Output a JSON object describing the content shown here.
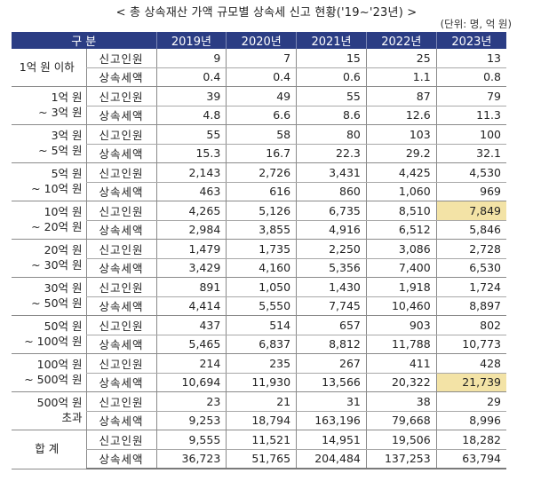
{
  "title": "< 총 상속재산 가액 규모별 상속세 신고 현황('19~'23년) >",
  "unit": "(단위: 명, 억 원)",
  "header": {
    "category": "구 분",
    "years": [
      "2019년",
      "2020년",
      "2021년",
      "2022년",
      "2023년"
    ]
  },
  "row_labels": {
    "filers": "신고인원",
    "tax": "상속세액"
  },
  "groups": [
    {
      "label_line1": "1억 원 이하",
      "label_line2": "",
      "filers": [
        "9",
        "7",
        "15",
        "25",
        "13"
      ],
      "tax": [
        "0.4",
        "0.4",
        "0.6",
        "1.1",
        "0.8"
      ]
    },
    {
      "label_line1": "1억  원",
      "label_line2": "~ 3억  원",
      "filers": [
        "39",
        "49",
        "55",
        "87",
        "79"
      ],
      "tax": [
        "4.8",
        "6.6",
        "8.6",
        "12.6",
        "11.3"
      ]
    },
    {
      "label_line1": "3억  원",
      "label_line2": "~ 5억  원",
      "filers": [
        "55",
        "58",
        "80",
        "103",
        "100"
      ],
      "tax": [
        "15.3",
        "16.7",
        "22.3",
        "29.2",
        "32.1"
      ]
    },
    {
      "label_line1": "5억  원",
      "label_line2": "~ 10억  원",
      "filers": [
        "2,143",
        "2,726",
        "3,431",
        "4,425",
        "4,530"
      ],
      "tax": [
        "463",
        "616",
        "860",
        "1,060",
        "969"
      ]
    },
    {
      "label_line1": "10억  원",
      "label_line2": "~ 20억  원",
      "filers": [
        "4,265",
        "5,126",
        "6,735",
        "8,510",
        "7,849"
      ],
      "tax": [
        "2,984",
        "3,855",
        "4,916",
        "6,512",
        "5,846"
      ],
      "highlight_filers_2023": true
    },
    {
      "label_line1": "20억  원",
      "label_line2": "~ 30억  원",
      "filers": [
        "1,479",
        "1,735",
        "2,250",
        "3,086",
        "2,728"
      ],
      "tax": [
        "3,429",
        "4,160",
        "5,356",
        "7,400",
        "6,530"
      ]
    },
    {
      "label_line1": "30억  원",
      "label_line2": "~ 50억  원",
      "filers": [
        "891",
        "1,050",
        "1,430",
        "1,918",
        "1,724"
      ],
      "tax": [
        "4,414",
        "5,550",
        "7,745",
        "10,460",
        "8,897"
      ]
    },
    {
      "label_line1": "50억  원",
      "label_line2": "~ 100억 원",
      "filers": [
        "437",
        "514",
        "657",
        "903",
        "802"
      ],
      "tax": [
        "5,465",
        "6,837",
        "8,812",
        "11,788",
        "10,773"
      ]
    },
    {
      "label_line1": "100억 원",
      "label_line2": "~ 500억 원",
      "filers": [
        "214",
        "235",
        "267",
        "411",
        "428"
      ],
      "tax": [
        "10,694",
        "11,930",
        "13,566",
        "20,322",
        "21,739"
      ],
      "highlight_tax_2023": true
    },
    {
      "label_line1": "500억 원",
      "label_line2": "초과",
      "filers": [
        "23",
        "21",
        "31",
        "38",
        "29"
      ],
      "tax": [
        "9,253",
        "18,794",
        "163,196",
        "79,668",
        "8,996"
      ]
    },
    {
      "label_line1": "합 계",
      "label_line2": "",
      "filers": [
        "9,555",
        "11,521",
        "14,951",
        "19,506",
        "18,282"
      ],
      "tax": [
        "36,723",
        "51,765",
        "204,484",
        "137,253",
        "63,794"
      ]
    }
  ],
  "colors": {
    "header_bg": "#2b3d84",
    "header_text": "#ffffff",
    "highlight": "#f3e3a6"
  }
}
